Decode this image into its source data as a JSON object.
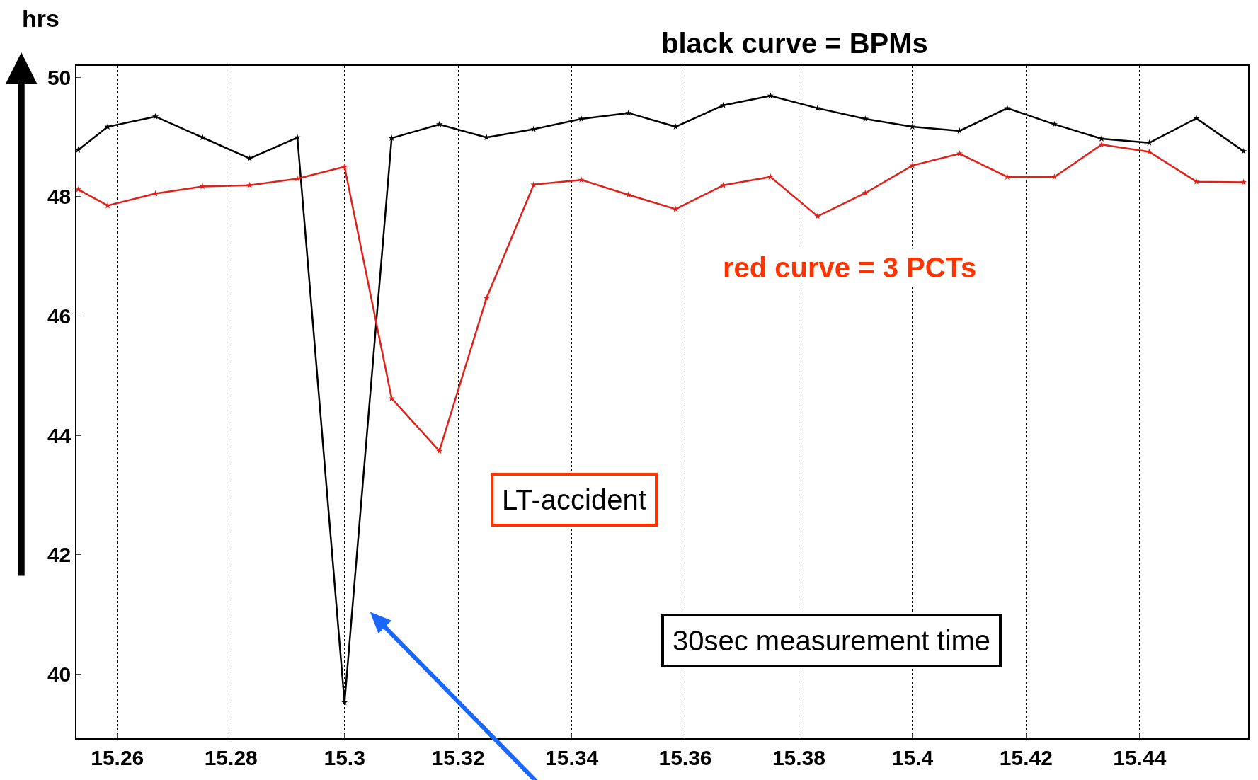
{
  "chart_data": {
    "type": "line",
    "ylabel": "hrs",
    "xlim": [
      15.2528,
      15.4591
    ],
    "ylim": [
      38.93,
      50.19
    ],
    "xticks": [
      15.26,
      15.28,
      15.3,
      15.32,
      15.34,
      15.36,
      15.38,
      15.4,
      15.42,
      15.44
    ],
    "yticks": [
      40,
      42,
      44,
      46,
      48,
      50
    ],
    "grid": "x",
    "marker": "star",
    "line_style": "solid",
    "series": [
      {
        "color": "#000000",
        "x": [
          15.2531,
          15.2583,
          15.2667,
          15.275,
          15.2833,
          15.2917,
          15.3,
          15.3083,
          15.3167,
          15.325,
          15.3333,
          15.3417,
          15.35,
          15.3583,
          15.3667,
          15.375,
          15.3833,
          15.3917,
          15.4,
          15.4083,
          15.4167,
          15.425,
          15.4333,
          15.4417,
          15.45,
          15.4583
        ],
        "values": [
          48.78,
          49.17,
          49.34,
          48.99,
          48.64,
          48.99,
          39.53,
          48.98,
          49.21,
          48.99,
          49.13,
          49.3,
          49.4,
          49.17,
          49.53,
          49.69,
          49.48,
          49.3,
          49.17,
          49.1,
          49.48,
          49.21,
          48.97,
          48.9,
          49.31,
          48.76
        ]
      },
      {
        "color": "#e0201a",
        "x": [
          15.2531,
          15.2583,
          15.2667,
          15.275,
          15.2833,
          15.2917,
          15.3,
          15.3083,
          15.3167,
          15.325,
          15.3333,
          15.3417,
          15.35,
          15.3583,
          15.3667,
          15.375,
          15.3833,
          15.3917,
          15.4,
          15.4083,
          15.4167,
          15.425,
          15.4333,
          15.4417,
          15.45,
          15.4583
        ],
        "values": [
          48.12,
          47.85,
          48.05,
          48.17,
          48.19,
          48.3,
          48.5,
          44.62,
          43.74,
          46.3,
          48.2,
          48.28,
          48.03,
          47.79,
          48.19,
          48.33,
          47.67,
          48.06,
          48.52,
          48.72,
          48.33,
          48.33,
          48.87,
          48.75,
          48.25,
          48.24
        ]
      }
    ],
    "annotations": [
      "black curve = BPMs",
      "red curve = 3 PCTs",
      "LT-accident",
      "30sec measurement time"
    ]
  }
}
